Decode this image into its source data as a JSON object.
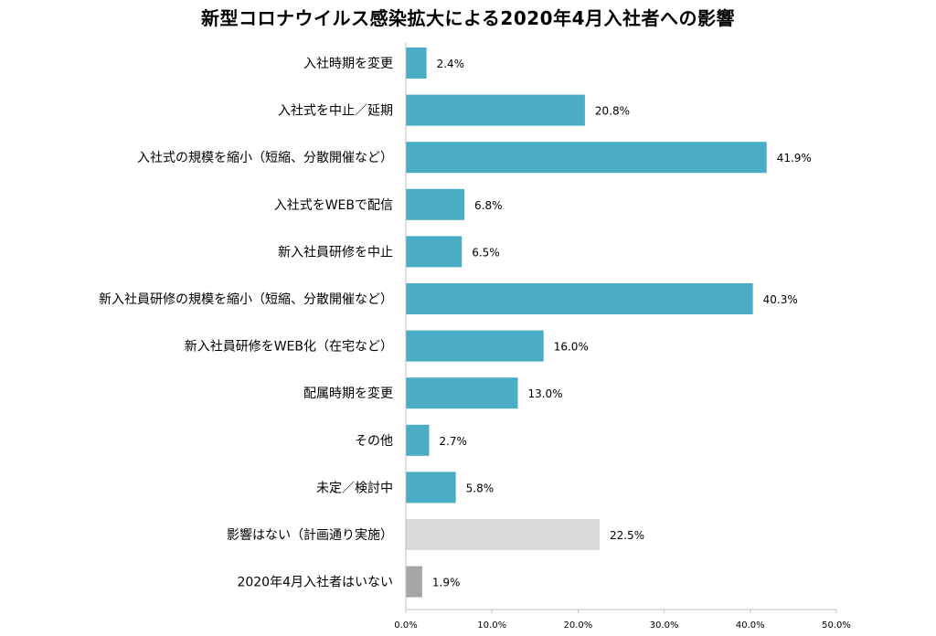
{
  "chart_data": {
    "type": "bar",
    "orientation": "horizontal",
    "title": "新型コロナウイルス感染拡大による2020年4月入社者への影響",
    "categories": [
      "入社時期を変更",
      "入社式を中止／延期",
      "入社式の規模を縮小（短縮、分散開催など）",
      "入社式をWEBで配信",
      "新入社員研修を中止",
      "新入社員研修の規模を縮小（短縮、分散開催など）",
      "新入社員研修をWEB化（在宅など）",
      "配属時期を変更",
      "その他",
      "未定／検討中",
      "影響はない（計画通り実施）",
      "2020年4月入社者はいない"
    ],
    "values": [
      2.4,
      20.8,
      41.9,
      6.8,
      6.5,
      40.3,
      16.0,
      13.0,
      2.7,
      5.8,
      22.5,
      1.9
    ],
    "value_labels": [
      "2.4%",
      "20.8%",
      "41.9%",
      "6.8%",
      "6.5%",
      "40.3%",
      "16.0%",
      "13.0%",
      "2.7%",
      "5.8%",
      "22.5%",
      "1.9%"
    ],
    "bar_colors": [
      "#4bacc6",
      "#4bacc6",
      "#4bacc6",
      "#4bacc6",
      "#4bacc6",
      "#4bacc6",
      "#4bacc6",
      "#4bacc6",
      "#4bacc6",
      "#4bacc6",
      "#d9d9d9",
      "#a6a6a6"
    ],
    "xlim": [
      0,
      50
    ],
    "x_ticks": [
      0,
      10,
      20,
      30,
      40,
      50
    ],
    "x_tick_labels": [
      "0.0%",
      "10.0%",
      "20.0%",
      "30.0%",
      "40.0%",
      "50.0%"
    ],
    "xlabel": "",
    "ylabel": "",
    "grid": false,
    "legend": "none"
  }
}
